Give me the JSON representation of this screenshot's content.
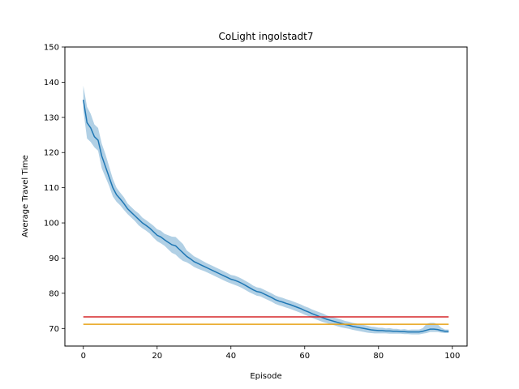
{
  "chart_data": {
    "type": "line",
    "title": "CoLight ingolstadt7",
    "xlabel": "Episode",
    "ylabel": "Average Travel Time",
    "xlim": [
      -5,
      104
    ],
    "ylim": [
      65,
      150
    ],
    "xticks": [
      0,
      20,
      40,
      60,
      80,
      100
    ],
    "yticks": [
      70,
      80,
      90,
      100,
      110,
      120,
      130,
      140,
      150
    ],
    "grid": false,
    "legend": "none",
    "series": [
      {
        "kind": "mean_with_band",
        "color": "#1f77b4",
        "band_color": "#1f77b4",
        "x": [
          0,
          1,
          2,
          3,
          4,
          5,
          6,
          7,
          8,
          9,
          10,
          11,
          12,
          13,
          14,
          15,
          16,
          17,
          18,
          19,
          20,
          21,
          22,
          23,
          24,
          25,
          26,
          27,
          28,
          29,
          30,
          31,
          32,
          33,
          34,
          35,
          36,
          37,
          38,
          39,
          40,
          41,
          42,
          43,
          44,
          45,
          46,
          47,
          48,
          49,
          50,
          51,
          52,
          53,
          54,
          55,
          56,
          57,
          58,
          59,
          60,
          61,
          62,
          63,
          64,
          65,
          66,
          67,
          68,
          69,
          70,
          71,
          72,
          73,
          74,
          75,
          76,
          77,
          78,
          79,
          80,
          81,
          82,
          83,
          84,
          85,
          86,
          87,
          88,
          89,
          90,
          91,
          92,
          93,
          94,
          95,
          96,
          97,
          98,
          99
        ],
        "y": [
          135,
          128.5,
          127,
          124.5,
          123.5,
          119,
          116,
          113,
          110,
          108,
          106.8,
          105.5,
          104,
          103,
          102,
          101,
          100,
          99.3,
          98.5,
          97.5,
          96.5,
          96,
          95.2,
          94.5,
          93.8,
          93.5,
          92.5,
          91.5,
          90.5,
          89.8,
          89,
          88.5,
          88,
          87.5,
          87,
          86.5,
          86,
          85.5,
          85,
          84.5,
          84,
          83.7,
          83.3,
          82.8,
          82.2,
          81.6,
          81,
          80.5,
          80.3,
          79.8,
          79.3,
          78.8,
          78.2,
          77.8,
          77.5,
          77.1,
          76.8,
          76.4,
          76,
          75.6,
          75.1,
          74.7,
          74.2,
          73.8,
          73.4,
          73,
          72.6,
          72.3,
          72,
          71.7,
          71.4,
          71.1,
          70.9,
          70.6,
          70.4,
          70.2,
          70,
          69.8,
          69.6,
          69.5,
          69.4,
          69.4,
          69.3,
          69.3,
          69.2,
          69.2,
          69.1,
          69.1,
          69,
          69,
          69,
          69,
          69.2,
          69.5,
          69.8,
          69.8,
          69.7,
          69.4,
          69.2,
          69.2
        ],
        "lower": [
          132,
          124,
          123,
          121.5,
          120.5,
          115.5,
          113,
          110.5,
          107.5,
          106,
          105,
          103.7,
          102.5,
          101.5,
          100.5,
          99.3,
          98.5,
          97.8,
          97,
          95.8,
          94.8,
          94.2,
          93.5,
          92.5,
          91.5,
          91,
          90,
          89.2,
          88.8,
          88.2,
          87.5,
          87,
          86.6,
          86.2,
          85.7,
          85.2,
          84.7,
          84.2,
          83.7,
          83.2,
          82.8,
          82.4,
          82,
          81.5,
          80.9,
          80.3,
          79.8,
          79.3,
          79.1,
          78.6,
          78.1,
          77.6,
          77,
          76.6,
          76.3,
          75.9,
          75.6,
          75.2,
          74.8,
          74.4,
          73.9,
          73.5,
          73,
          72.6,
          72.2,
          71.8,
          71.5,
          71.2,
          70.9,
          70.6,
          70.3,
          70.1,
          69.9,
          69.6,
          69.4,
          69.2,
          69,
          68.8,
          68.7,
          68.6,
          68.6,
          68.6,
          68.6,
          68.5,
          68.5,
          68.5,
          68.5,
          68.4,
          68.4,
          68.3,
          68.3,
          68.3,
          68.5,
          68.7,
          69,
          69,
          69,
          68.8,
          68.7,
          68.7
        ],
        "upper": [
          139,
          133,
          131,
          128,
          127,
          122.5,
          119.5,
          116,
          112.5,
          110,
          108.6,
          107.3,
          105.5,
          104.5,
          103.5,
          102.7,
          101.5,
          100.8,
          100,
          99.2,
          98.2,
          97.8,
          96.9,
          96.5,
          96.1,
          96,
          95,
          94,
          92.2,
          91.4,
          90.5,
          90,
          89.4,
          88.8,
          88.3,
          87.8,
          87.3,
          86.8,
          86.3,
          85.8,
          85.2,
          85,
          84.6,
          84.1,
          83.5,
          82.9,
          82.2,
          81.7,
          81.5,
          81,
          80.5,
          80,
          79.4,
          79,
          78.7,
          78.3,
          78,
          77.6,
          77.2,
          76.8,
          76.3,
          75.9,
          75.4,
          75,
          74.6,
          74.2,
          73.7,
          73.4,
          73.1,
          72.8,
          72.5,
          72.1,
          71.9,
          71.6,
          71.4,
          71.2,
          71,
          70.8,
          70.5,
          70.4,
          70.2,
          70.2,
          70,
          70.1,
          69.9,
          69.9,
          69.7,
          69.8,
          69.6,
          69.7,
          69.7,
          69.7,
          70.1,
          71.3,
          71.6,
          71.6,
          71.2,
          70.2,
          69.7,
          69.7
        ]
      },
      {
        "kind": "hline",
        "color": "#d62728",
        "x": [
          0,
          99
        ],
        "y": 73.3
      },
      {
        "kind": "hline",
        "color": "#e8a317",
        "x": [
          0,
          99
        ],
        "y": 71.2
      }
    ]
  }
}
